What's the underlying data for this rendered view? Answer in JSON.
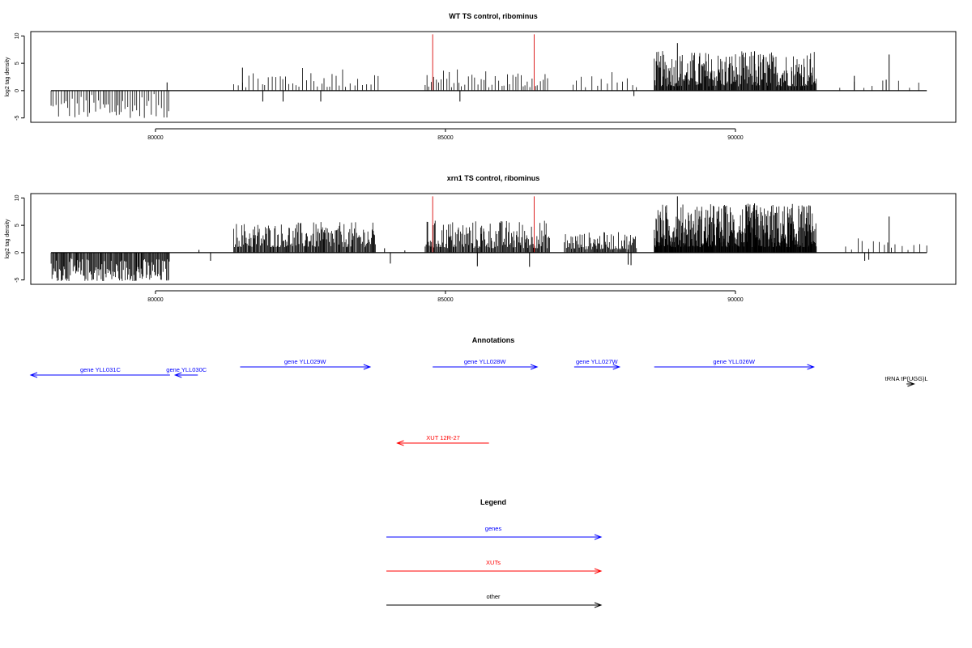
{
  "chart_data": [
    {
      "type": "bar",
      "title": "WT TS control, ribominus",
      "ylabel": "log2 tag density",
      "xlim": [
        77850,
        93800
      ],
      "ylim": [
        -5.8,
        10.8
      ],
      "yticks": [
        -5,
        0,
        5,
        10
      ],
      "xticks": [
        80000,
        85000,
        90000
      ],
      "baseline": {
        "x": [
          78200,
          93300
        ]
      },
      "coverage_regions": [
        {
          "from": 78200,
          "to": 80250,
          "min": -5,
          "max": -0.6,
          "spacing": 38
        },
        {
          "from": 81350,
          "to": 83900,
          "min": 0.6,
          "max": 4.3,
          "spacing": 60
        },
        {
          "from": 84650,
          "to": 86800,
          "min": 0.6,
          "max": 4.0,
          "spacing": 45
        },
        {
          "from": 87200,
          "to": 88300,
          "min": 0.6,
          "max": 3.5,
          "spacing": 80
        },
        {
          "from": 88600,
          "to": 91400,
          "min": 0.8,
          "max": 7.3,
          "spacing": 11
        },
        {
          "from": 91800,
          "to": 93300,
          "min": 0.4,
          "max": 2.0,
          "spacing": 220
        }
      ],
      "spikes": [
        {
          "x": 80200,
          "y": 1.5
        },
        {
          "x": 81500,
          "y": 4.2
        },
        {
          "x": 81850,
          "y": -2
        },
        {
          "x": 82200,
          "y": -2
        },
        {
          "x": 82850,
          "y": -2
        },
        {
          "x": 85250,
          "y": -2
        },
        {
          "x": 88250,
          "y": -1
        },
        {
          "x": 89000,
          "y": 8.7
        },
        {
          "x": 90330,
          "y": 7.2
        },
        {
          "x": 92650,
          "y": 6.6
        },
        {
          "x": 92600,
          "y": 2.0
        },
        {
          "x": 92050,
          "y": 2.7
        }
      ],
      "highlight_lines": [
        {
          "x": 84780,
          "y": 10.3,
          "color": "#dd2222"
        },
        {
          "x": 86530,
          "y": 10.3,
          "color": "#dd2222"
        }
      ]
    },
    {
      "type": "bar",
      "title": "xrn1 TS control, ribominus",
      "ylabel": "log2 tag density",
      "xlim": [
        77850,
        93800
      ],
      "ylim": [
        -5.8,
        10.8
      ],
      "yticks": [
        -5,
        0,
        5,
        10
      ],
      "xticks": [
        80000,
        85000,
        90000
      ],
      "baseline": {
        "x": [
          78200,
          93300
        ]
      },
      "coverage_regions": [
        {
          "from": 78200,
          "to": 80250,
          "min": -5.2,
          "max": -1.0,
          "spacing": 14
        },
        {
          "from": 81350,
          "to": 83800,
          "min": 1.0,
          "max": 5.6,
          "spacing": 14
        },
        {
          "from": 84650,
          "to": 86800,
          "min": 0.8,
          "max": 6.0,
          "spacing": 14
        },
        {
          "from": 87050,
          "to": 88300,
          "min": 0.6,
          "max": 3.8,
          "spacing": 14
        },
        {
          "from": 88600,
          "to": 91400,
          "min": 1.0,
          "max": 9.0,
          "spacing": 7
        },
        {
          "from": 91900,
          "to": 93350,
          "min": 0.3,
          "max": 2.6,
          "spacing": 90
        }
      ],
      "spikes": [
        {
          "x": 80750,
          "y": 0.5
        },
        {
          "x": 80950,
          "y": -1.5
        },
        {
          "x": 83950,
          "y": 0.8
        },
        {
          "x": 84050,
          "y": -2
        },
        {
          "x": 84300,
          "y": 0.4
        },
        {
          "x": 85550,
          "y": -2.5
        },
        {
          "x": 86450,
          "y": -2.6
        },
        {
          "x": 88150,
          "y": -2.2
        },
        {
          "x": 88200,
          "y": -2.3
        },
        {
          "x": 89000,
          "y": 10.3
        },
        {
          "x": 90330,
          "y": 9.0
        },
        {
          "x": 92650,
          "y": 6.6
        },
        {
          "x": 92230,
          "y": -1.5
        },
        {
          "x": 92300,
          "y": -1.3
        }
      ],
      "highlight_lines": [
        {
          "x": 84780,
          "y": 10.3,
          "color": "#dd2222"
        },
        {
          "x": 86530,
          "y": 10.3,
          "color": "#dd2222"
        }
      ]
    }
  ],
  "annotations": {
    "title": "Annotations",
    "features": [
      {
        "label": "gene YLL031C",
        "from": 77850,
        "to": 80250,
        "direction": "reverse",
        "color": "#0000ff",
        "row": 2
      },
      {
        "label": "gene YLL030C",
        "from": 80340,
        "to": 80730,
        "direction": "reverse",
        "color": "#0000ff",
        "row": 2
      },
      {
        "label": "gene YLL029W",
        "from": 81460,
        "to": 83700,
        "direction": "forward",
        "color": "#0000ff",
        "row": 1
      },
      {
        "label": "gene YLL028W",
        "from": 84780,
        "to": 86580,
        "direction": "forward",
        "color": "#0000ff",
        "row": 1
      },
      {
        "label": "gene YLL027W",
        "from": 87220,
        "to": 88000,
        "direction": "forward",
        "color": "#0000ff",
        "row": 1
      },
      {
        "label": "gene YLL026W",
        "from": 88600,
        "to": 91350,
        "direction": "forward",
        "color": "#0000ff",
        "row": 1
      },
      {
        "label": "tRNA tP(UGG)L",
        "from": 92950,
        "to": 93080,
        "direction": "forward",
        "color": "#000000",
        "row": 3
      },
      {
        "label": "XUT 12R-27",
        "from": 84170,
        "to": 85750,
        "direction": "reverse",
        "color": "#ff0000",
        "row": 4
      }
    ]
  },
  "legend": {
    "title": "Legend",
    "items": [
      {
        "label": "genes",
        "color": "#0000ff"
      },
      {
        "label": "XUTs",
        "color": "#ff0000"
      },
      {
        "label": "other",
        "color": "#000000"
      }
    ]
  }
}
